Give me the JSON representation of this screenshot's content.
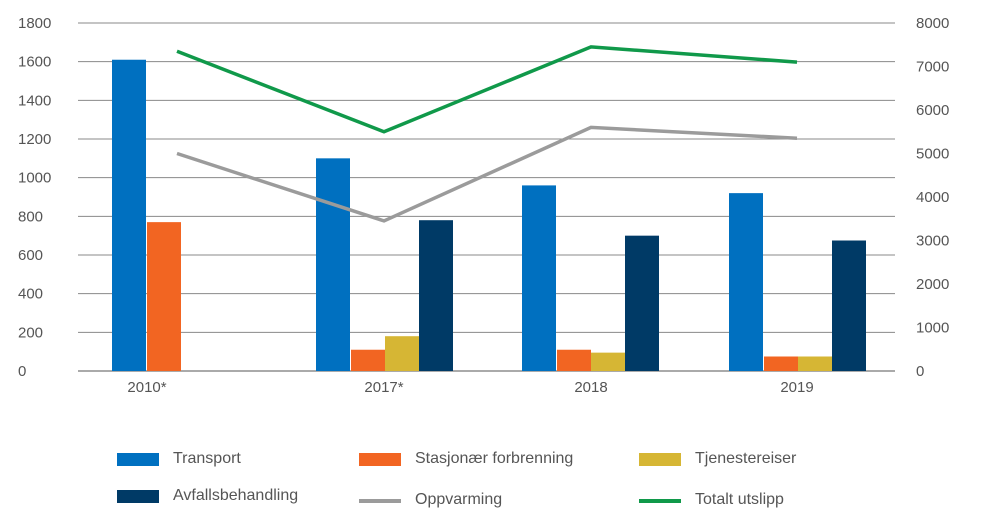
{
  "chart_data": {
    "type": "bar",
    "categories": [
      "2010*",
      "2017*",
      "2018",
      "2019"
    ],
    "left_axis": {
      "ylim": [
        0,
        1800
      ],
      "ticks": [
        0,
        200,
        400,
        600,
        800,
        1000,
        1200,
        1400,
        1600,
        1800
      ]
    },
    "right_axis": {
      "ylim": [
        0,
        8000
      ],
      "ticks": [
        0,
        1000,
        2000,
        3000,
        4000,
        5000,
        6000,
        7000,
        8000
      ]
    },
    "grid": true,
    "legend_position": "bottom",
    "series": [
      {
        "name": "Transport",
        "kind": "bar",
        "axis": "left",
        "color": "#0070C0",
        "values": [
          1610,
          1100,
          960,
          920
        ]
      },
      {
        "name": "Stasjonær forbrenning",
        "kind": "bar",
        "axis": "left",
        "color": "#F26522",
        "values": [
          770,
          110,
          110,
          75
        ]
      },
      {
        "name": "Tjenestereiser",
        "kind": "bar",
        "axis": "left",
        "color": "#D6B634",
        "values": [
          null,
          180,
          95,
          75
        ]
      },
      {
        "name": "Avfallsbehandling",
        "kind": "bar",
        "axis": "left",
        "color": "#003A66",
        "values": [
          null,
          780,
          700,
          675
        ]
      },
      {
        "name": "Oppvarming",
        "kind": "line",
        "axis": "right",
        "color": "#9B9B9B",
        "values": [
          5000,
          3450,
          5600,
          5350
        ]
      },
      {
        "name": "Totalt utslipp",
        "kind": "line",
        "axis": "right",
        "color": "#10994A",
        "values": [
          7350,
          5500,
          7450,
          7100
        ]
      }
    ]
  }
}
